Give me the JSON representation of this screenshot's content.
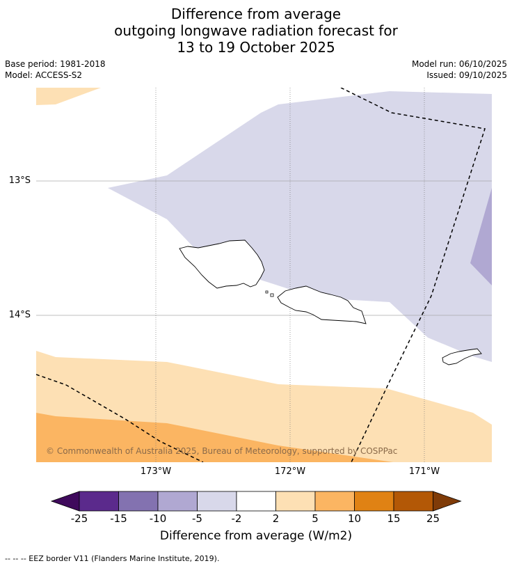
{
  "title": {
    "line1": "Difference from average",
    "line2": "outgoing longwave radiation forecast for",
    "line3": "13 to 19 October 2025"
  },
  "meta": {
    "base_period": "Base period: 1981-2018",
    "model": "Model: ACCESS-S2",
    "model_run": "Model run: 06/10/2025",
    "issued": "Issued: 09/10/2025"
  },
  "map": {
    "lat_labels": [
      "13°S",
      "14°S"
    ],
    "lon_labels": [
      "173°W",
      "172°W",
      "171°W"
    ],
    "copyright": "© Commonwealth of Australia 2025, Bureau of Meteorology, supported by COSPPac"
  },
  "colorbar": {
    "colors": [
      "#3f0a5c",
      "#5b2a8c",
      "#8372b0",
      "#b0a8d2",
      "#d8d8ea",
      "#ffffff",
      "#fde0b4",
      "#fbb562",
      "#e08214",
      "#b35806",
      "#7f3b08"
    ],
    "ticks": [
      "-25",
      "-15",
      "-10",
      "-5",
      "-2",
      "2",
      "5",
      "10",
      "15",
      "25"
    ],
    "label": "Difference from average (W/m2)"
  },
  "footnote": "--  --  -- EEZ border V11 (Flanders Marine Institute, 2019)."
}
